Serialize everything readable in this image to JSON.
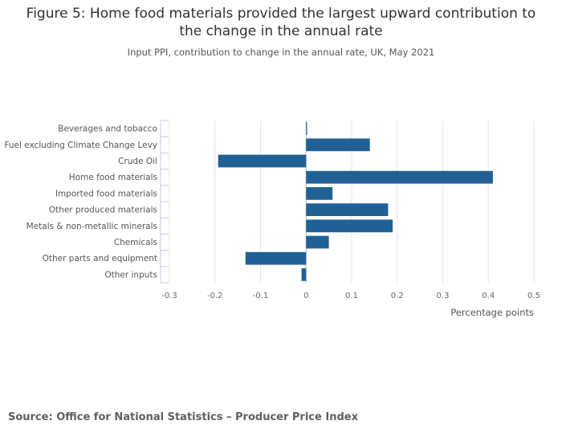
{
  "chart_data": {
    "type": "bar",
    "orientation": "horizontal",
    "title": "Figure 5: Home food materials provided the largest upward contribution to the change in the annual rate",
    "subtitle": "Input PPI, contribution to change in the annual rate, UK, May 2021",
    "categories": [
      "Beverages and tobacco",
      "Fuel excluding Climate Change Levy",
      "Crude Oil",
      "Home food materials",
      "Imported food materials",
      "Other produced materials",
      "Metals & non-metallic minerals",
      "Chemicals",
      "Other parts and equipment",
      "Other inputs"
    ],
    "values": [
      0.002,
      0.14,
      -0.193,
      0.41,
      0.058,
      0.18,
      0.19,
      0.05,
      -0.133,
      -0.01
    ],
    "xlim": [
      -0.3,
      0.5
    ],
    "xticks": [
      -0.3,
      -0.2,
      -0.1,
      0,
      0.1,
      0.2,
      0.3,
      0.4,
      0.5
    ],
    "xtick_labels": [
      "-0.3",
      "-0.2",
      "-0.1",
      "0",
      "0.1",
      "0.2",
      "0.3",
      "0.4",
      "0.5"
    ],
    "xlabel": "Percentage points",
    "ylabel": "",
    "grid": true,
    "bar_color": "#206095"
  },
  "source": "Source: Office for National Statistics – Producer Price Index"
}
